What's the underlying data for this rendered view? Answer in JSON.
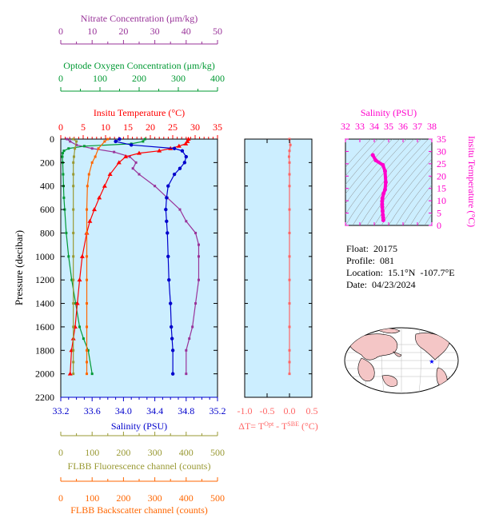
{
  "float_info": {
    "float_line": "Float:  20175",
    "profile_line": "Profile:  081",
    "location_line": "Location:  15.1°N  -107.7°E",
    "date_line": "Date:  04/23/2024"
  },
  "colors": {
    "nitrate": "#993399",
    "oxygen": "#009933",
    "temperature": "#ff0000",
    "salinity": "#0000cc",
    "fluorescence": "#999933",
    "backscatter": "#ff6600",
    "dt": "#ff6666",
    "ts": "#ff00cc",
    "panel_bg": "#cceeff"
  },
  "chart_data": [
    {
      "type": "line",
      "name": "main-profile-panel",
      "ylabel": "Pressure (decibar)",
      "ylim": [
        2200,
        0
      ],
      "yticks": [
        "0",
        "200",
        "400",
        "600",
        "800",
        "1000",
        "1200",
        "1400",
        "1600",
        "1800",
        "2000",
        "2200"
      ],
      "axes": {
        "nitrate": {
          "label": "Nitrate Concentration (μm/kg)",
          "range": [
            0,
            50
          ],
          "ticks": [
            "0",
            "10",
            "20",
            "30",
            "40",
            "50"
          ]
        },
        "oxygen": {
          "label": "Optode Oxygen Concentration (μm/kg)",
          "range": [
            0,
            400
          ],
          "ticks": [
            "0",
            "100",
            "200",
            "300",
            "400"
          ]
        },
        "temperature": {
          "label": "Insitu Temperature (°C)",
          "range": [
            0,
            35
          ],
          "ticks": [
            "0",
            "5",
            "10",
            "15",
            "20",
            "25",
            "30",
            "35"
          ]
        },
        "salinity": {
          "label": "Salinity (PSU)",
          "range": [
            33.2,
            35.2
          ],
          "ticks": [
            "33.2",
            "33.6",
            "34.0",
            "34.4",
            "34.8",
            "35.2"
          ]
        },
        "fluorescence": {
          "label": "FLBB Fluorescence channel (counts)",
          "range": [
            0,
            500
          ],
          "ticks": [
            "0",
            "100",
            "200",
            "300",
            "400",
            "500"
          ]
        },
        "backscatter": {
          "label": "FLBB Backscatter channel (counts)",
          "range": [
            0,
            500
          ],
          "ticks": [
            "0",
            "100",
            "200",
            "300",
            "400",
            "500"
          ]
        }
      },
      "series": [
        {
          "name": "Nitrate Concentration",
          "axis": "nitrate",
          "x": [
            2,
            3,
            5,
            10,
            17,
            22,
            24,
            23,
            25,
            30,
            34,
            38,
            40,
            43,
            44,
            44,
            44,
            43,
            42,
            41,
            40,
            40
          ],
          "y": [
            0,
            20,
            50,
            80,
            110,
            150,
            200,
            250,
            300,
            400,
            500,
            600,
            700,
            800,
            900,
            1000,
            1200,
            1400,
            1600,
            1700,
            1800,
            2000
          ]
        },
        {
          "name": "Optode Oxygen Concentration",
          "axis": "oxygen",
          "x": [
            215,
            210,
            180,
            60,
            20,
            8,
            5,
            4,
            5,
            6,
            7,
            8,
            10,
            14,
            20,
            28,
            38,
            48,
            58,
            70,
            80
          ],
          "y": [
            0,
            20,
            40,
            60,
            80,
            100,
            120,
            150,
            200,
            300,
            400,
            500,
            600,
            800,
            1000,
            1200,
            1400,
            1600,
            1700,
            1800,
            2000
          ]
        },
        {
          "name": "Insitu Temperature",
          "axis": "temperature",
          "x": [
            28.5,
            28.3,
            27.9,
            26.4,
            24.5,
            22,
            17.5,
            14.5,
            13,
            11,
            9.8,
            8.6,
            7.5,
            6.5,
            5.8,
            4.8,
            4.2,
            3.7,
            3.2,
            2.8,
            2.4,
            2.1
          ],
          "y": [
            0,
            20,
            40,
            60,
            80,
            100,
            120,
            150,
            200,
            300,
            400,
            500,
            600,
            700,
            800,
            1000,
            1200,
            1400,
            1600,
            1700,
            1800,
            2000
          ]
        },
        {
          "name": "Salinity",
          "axis": "salinity",
          "x": [
            33.95,
            33.9,
            34.1,
            34.65,
            34.75,
            34.8,
            34.78,
            34.72,
            34.65,
            34.57,
            34.55,
            34.54,
            34.55,
            34.56,
            34.57,
            34.58,
            34.6,
            34.61,
            34.62,
            34.63,
            34.63
          ],
          "y": [
            0,
            20,
            50,
            80,
            100,
            150,
            200,
            250,
            300,
            400,
            500,
            600,
            700,
            800,
            1000,
            1200,
            1400,
            1600,
            1700,
            1800,
            2000
          ]
        },
        {
          "name": "FLBB Fluorescence",
          "axis": "fluorescence",
          "x": [
            40,
            50,
            45,
            42,
            40,
            40,
            40,
            40,
            40,
            40,
            40,
            40,
            40,
            40,
            40,
            40
          ],
          "y": [
            0,
            20,
            80,
            150,
            200,
            300,
            400,
            600,
            800,
            1000,
            1200,
            1400,
            1600,
            1800,
            1900,
            2000
          ]
        },
        {
          "name": "FLBB Backscatter",
          "axis": "backscatter",
          "x": [
            150,
            140,
            120,
            110,
            100,
            90,
            85,
            83,
            83,
            83,
            83,
            83,
            83,
            83,
            83,
            83
          ],
          "y": [
            0,
            20,
            80,
            150,
            200,
            300,
            400,
            600,
            800,
            1000,
            1200,
            1400,
            1600,
            1800,
            1900,
            2000
          ]
        }
      ]
    },
    {
      "type": "line",
      "name": "delta-t-panel",
      "xlabel": "ΔT= T^Opt - T^SBE (°C)",
      "xlim": [
        -1.0,
        0.5
      ],
      "xticks": [
        "-1.0",
        "-0.5",
        "0.0",
        "0.5"
      ],
      "ylim": [
        2200,
        0
      ],
      "series": [
        {
          "name": "Delta T",
          "x": [
            0.0,
            0.02,
            0.0,
            -0.01,
            0.0,
            0.0,
            0.0,
            0.0,
            0.0,
            0.0,
            0.0,
            0.0,
            0.0,
            0.0,
            0.0,
            0.0
          ],
          "y": [
            0,
            50,
            100,
            150,
            200,
            300,
            400,
            600,
            800,
            1000,
            1200,
            1400,
            1600,
            1800,
            1900,
            2000
          ]
        }
      ]
    },
    {
      "type": "line",
      "name": "ts-panel",
      "xlabel": "Salinity (PSU)",
      "ylabel": "Insitu Temperature (°C)",
      "xlim": [
        32,
        38
      ],
      "ylim": [
        0,
        35
      ],
      "xticks": [
        "32",
        "33",
        "34",
        "35",
        "36",
        "37",
        "38"
      ],
      "yticks": [
        "0",
        "5",
        "10",
        "15",
        "20",
        "25",
        "30",
        "35"
      ],
      "series": [
        {
          "name": "T-S",
          "x": [
            33.9,
            34.1,
            34.6,
            34.75,
            34.8,
            34.75,
            34.65,
            34.57,
            34.55,
            34.55,
            34.56,
            34.58,
            34.6,
            34.62,
            34.63
          ],
          "y": [
            28.5,
            26.4,
            24.5,
            22,
            17.5,
            14.5,
            13,
            11,
            9.8,
            8.6,
            7.5,
            5.8,
            4.2,
            3.2,
            2.1
          ]
        }
      ]
    }
  ]
}
